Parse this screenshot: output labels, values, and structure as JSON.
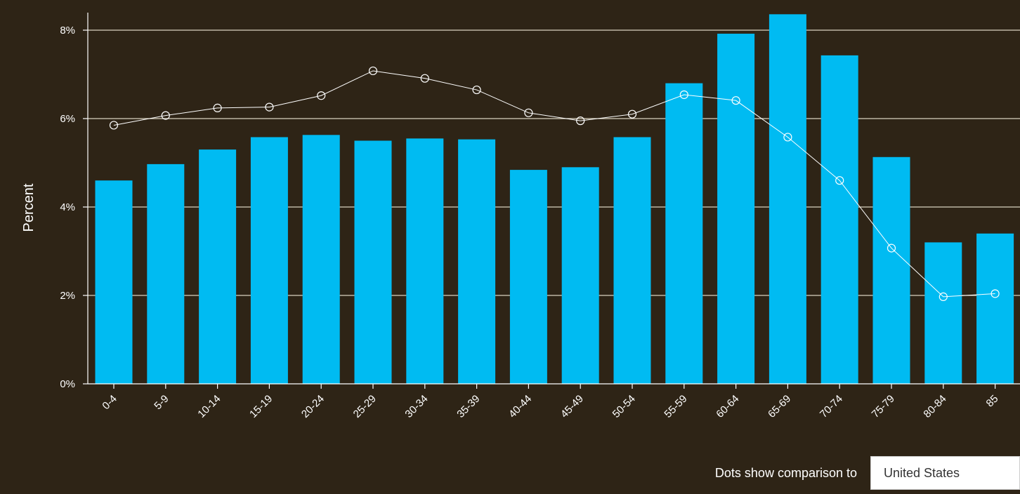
{
  "chart_data": {
    "type": "bar",
    "ylabel": "Percent",
    "xlabel": "",
    "ylim": [
      0,
      8.4
    ],
    "yticks": [
      0,
      2,
      4,
      6,
      8
    ],
    "ytick_labels": [
      "0%",
      "2%",
      "4%",
      "6%",
      "8%"
    ],
    "categories": [
      "0-4",
      "5-9",
      "10-14",
      "15-19",
      "20-24",
      "25-29",
      "30-34",
      "35-39",
      "40-44",
      "45-49",
      "50-54",
      "55-59",
      "60-64",
      "65-69",
      "70-74",
      "75-79",
      "80-84",
      "85"
    ],
    "series": [
      {
        "kind": "bar",
        "color": "#00bbf2",
        "values": [
          4.6,
          4.97,
          5.3,
          5.58,
          5.63,
          5.5,
          5.55,
          5.53,
          4.84,
          4.9,
          5.58,
          6.8,
          7.92,
          8.36,
          7.43,
          5.13,
          3.2,
          3.4
        ]
      },
      {
        "kind": "line",
        "color": "#ffffff",
        "values": [
          5.85,
          6.07,
          6.24,
          6.26,
          6.52,
          7.08,
          6.91,
          6.65,
          6.13,
          5.95,
          6.1,
          6.54,
          6.41,
          5.58,
          4.6,
          3.07,
          1.97,
          2.04
        ]
      }
    ],
    "grid": true
  },
  "footer": {
    "comparison_text": "Dots show comparison to",
    "comparison_value": "United States"
  }
}
